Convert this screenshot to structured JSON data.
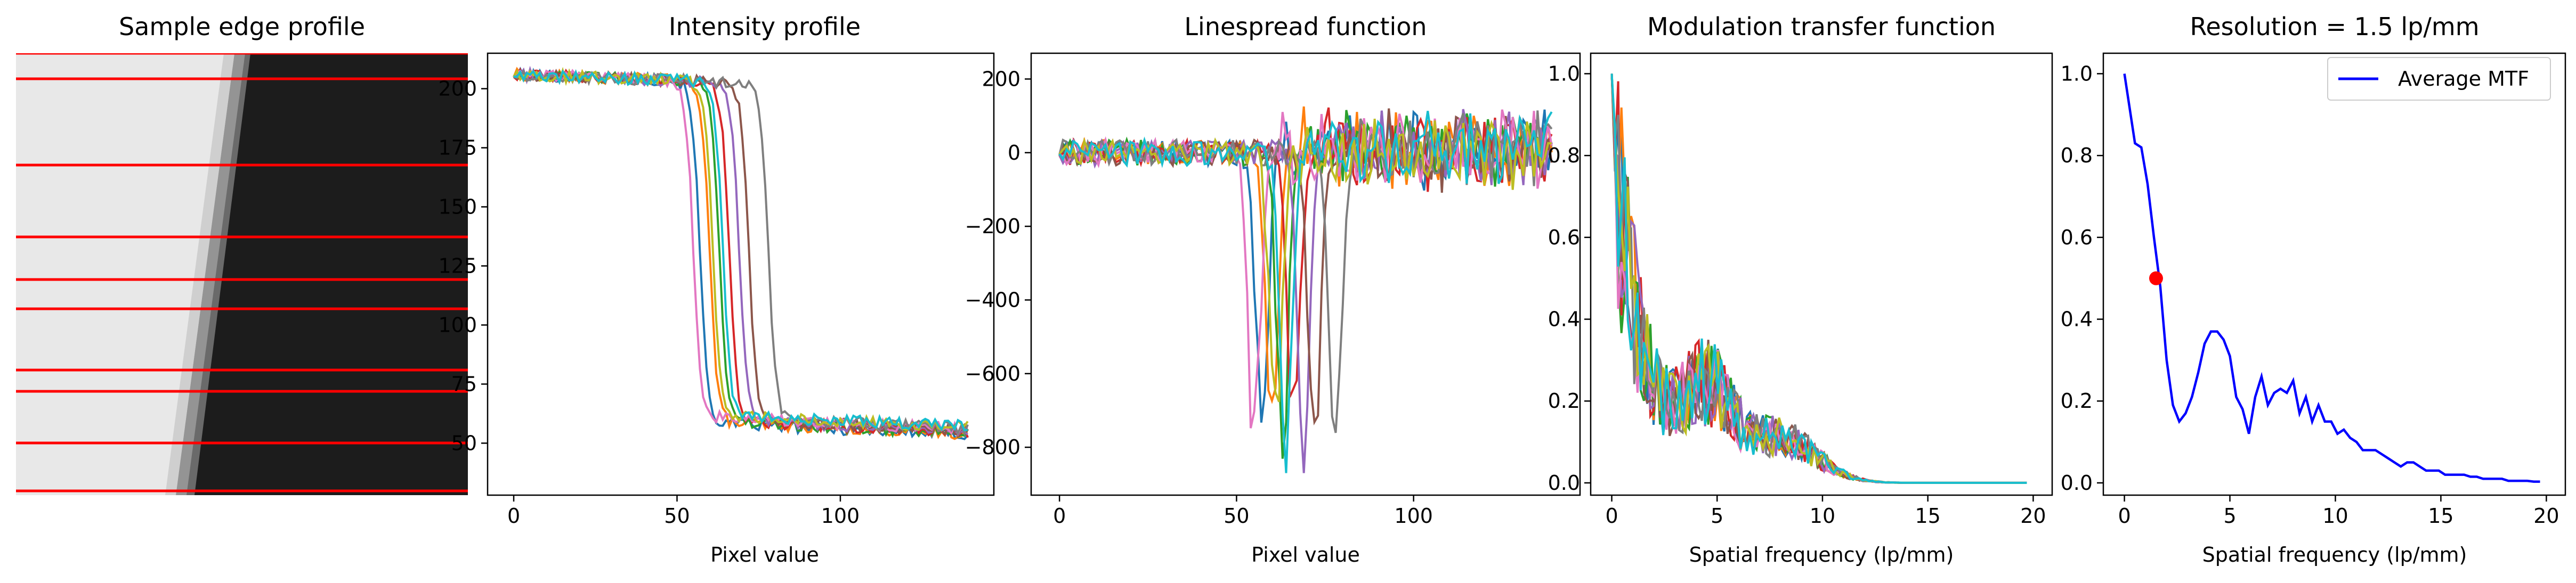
{
  "colors": {
    "palette": [
      "#1f77b4",
      "#ff7f0e",
      "#2ca02c",
      "#d62728",
      "#9467bd",
      "#8c564b",
      "#e377c2",
      "#7f7f7f",
      "#bcbd22",
      "#17becf"
    ],
    "profile_line": "#ff0000",
    "average_mtf": "#0000ff",
    "resolution_marker": "#ff0000"
  },
  "chart_data": [
    {
      "type": "image",
      "title": "Sample edge profile",
      "description_only": false,
      "profile_lines": 11
    },
    {
      "type": "line",
      "title": "Intensity profile",
      "xlabel": "Pixel value",
      "ylabel": "",
      "xlim": [
        -8,
        147
      ],
      "ylim": [
        28,
        215
      ],
      "xticks": [
        0,
        50,
        100
      ],
      "yticks": [
        50,
        75,
        100,
        125,
        150,
        175,
        200
      ],
      "n_points": 140,
      "series_edges": [
        57,
        60,
        63,
        66,
        69,
        72,
        55,
        78,
        61,
        64
      ],
      "high_level": 203,
      "low_level": 50
    },
    {
      "type": "line",
      "title": "Linespread function",
      "xlabel": "Pixel value",
      "ylabel": "",
      "xlim": [
        -8,
        147
      ],
      "ylim": [
        -930,
        270
      ],
      "xticks": [
        0,
        50,
        100
      ],
      "yticks": [
        -800,
        -600,
        -400,
        -200,
        0,
        200
      ],
      "n_points": 140,
      "series_edges": [
        57,
        60,
        63,
        66,
        69,
        72,
        55,
        78,
        61,
        64
      ],
      "min_value": -870,
      "max_value": 215
    },
    {
      "type": "line",
      "title": "Modulation transfer function",
      "xlabel": "Spatial frequency (lp/mm)",
      "ylabel": "",
      "xlim": [
        -1,
        20.9
      ],
      "ylim": [
        -0.03,
        1.05
      ],
      "xticks": [
        0,
        5,
        10,
        15,
        20
      ],
      "yticks": [
        0.0,
        0.2,
        0.4,
        0.6,
        0.8,
        1.0
      ],
      "n_points": 130,
      "x_max": 19.7
    },
    {
      "type": "line",
      "title": "Resolution = 1.5 lp/mm",
      "xlabel": "Spatial frequency (lp/mm)",
      "ylabel": "",
      "xlim": [
        -1,
        20.9
      ],
      "ylim": [
        -0.03,
        1.05
      ],
      "xticks": [
        0,
        5,
        10,
        15,
        20
      ],
      "yticks": [
        0.0,
        0.2,
        0.4,
        0.6,
        0.8,
        1.0
      ],
      "legend": {
        "label": "Average MTF",
        "placement": "top-right"
      },
      "series": [
        {
          "name": "Average MTF",
          "x": [
            0,
            0.5,
            0.8,
            1.1,
            1.4,
            1.7,
            2.0,
            2.3,
            2.6,
            2.9,
            3.2,
            3.5,
            3.8,
            4.1,
            4.4,
            4.7,
            5.0,
            5.3,
            5.6,
            5.9,
            6.2,
            6.5,
            6.8,
            7.1,
            7.4,
            7.7,
            8.0,
            8.3,
            8.6,
            8.9,
            9.2,
            9.5,
            9.8,
            10.1,
            10.4,
            10.7,
            11.0,
            11.3,
            11.6,
            11.9,
            12.2,
            12.5,
            12.8,
            13.1,
            13.4,
            13.7,
            14.0,
            14.3,
            14.6,
            14.9,
            15.2,
            15.5,
            15.8,
            16.1,
            16.4,
            16.7,
            17.0,
            17.3,
            17.6,
            17.9,
            18.2,
            18.5,
            18.8,
            19.1,
            19.4,
            19.7
          ],
          "y": [
            1.0,
            0.83,
            0.82,
            0.73,
            0.6,
            0.48,
            0.3,
            0.19,
            0.15,
            0.17,
            0.21,
            0.27,
            0.34,
            0.37,
            0.37,
            0.35,
            0.31,
            0.21,
            0.18,
            0.12,
            0.21,
            0.26,
            0.19,
            0.22,
            0.23,
            0.22,
            0.25,
            0.17,
            0.21,
            0.15,
            0.19,
            0.15,
            0.15,
            0.12,
            0.13,
            0.11,
            0.1,
            0.08,
            0.08,
            0.08,
            0.07,
            0.06,
            0.05,
            0.04,
            0.05,
            0.05,
            0.04,
            0.03,
            0.03,
            0.03,
            0.02,
            0.02,
            0.02,
            0.02,
            0.015,
            0.015,
            0.01,
            0.01,
            0.01,
            0.01,
            0.005,
            0.005,
            0.005,
            0.005,
            0.003,
            0.003
          ]
        }
      ],
      "marker": {
        "x": 1.5,
        "y": 0.5
      }
    }
  ]
}
